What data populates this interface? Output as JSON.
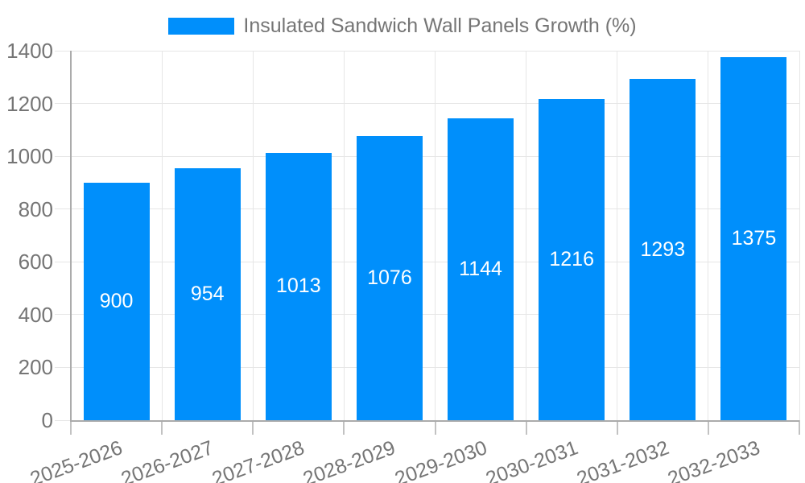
{
  "legend": {
    "label": "Insulated Sandwich Wall Panels Growth (%)"
  },
  "colors": {
    "bar": "#008FFB",
    "bar_label": "#FFFFFF",
    "axis_text": "#757575",
    "grid_line": "#E6E6E6",
    "axis_line": "#ABABAB",
    "tick_mark": "#C2C2C2",
    "background": "#FFFFFF"
  },
  "chart_data": {
    "type": "bar",
    "title": "",
    "xlabel": "",
    "ylabel": "",
    "categories": [
      "2025-2026",
      "2026-2027",
      "2027-2028",
      "2028-2029",
      "2029-2030",
      "2030-2031",
      "2031-2032",
      "2032-2033"
    ],
    "series": [
      {
        "name": "Insulated Sandwich Wall Panels Growth (%)",
        "values": [
          900,
          954,
          1013,
          1076,
          1144,
          1216,
          1293,
          1375
        ]
      }
    ],
    "bar_value_labels": [
      "900",
      "954",
      "1013",
      "1076",
      "1144",
      "1216",
      "1293",
      "1375"
    ],
    "ylim": [
      0,
      1400
    ],
    "yticks": [
      0,
      200,
      400,
      600,
      800,
      1000,
      1200,
      1400
    ],
    "grid": true,
    "legend_position": "top",
    "x_label_rotation_deg": -20
  }
}
